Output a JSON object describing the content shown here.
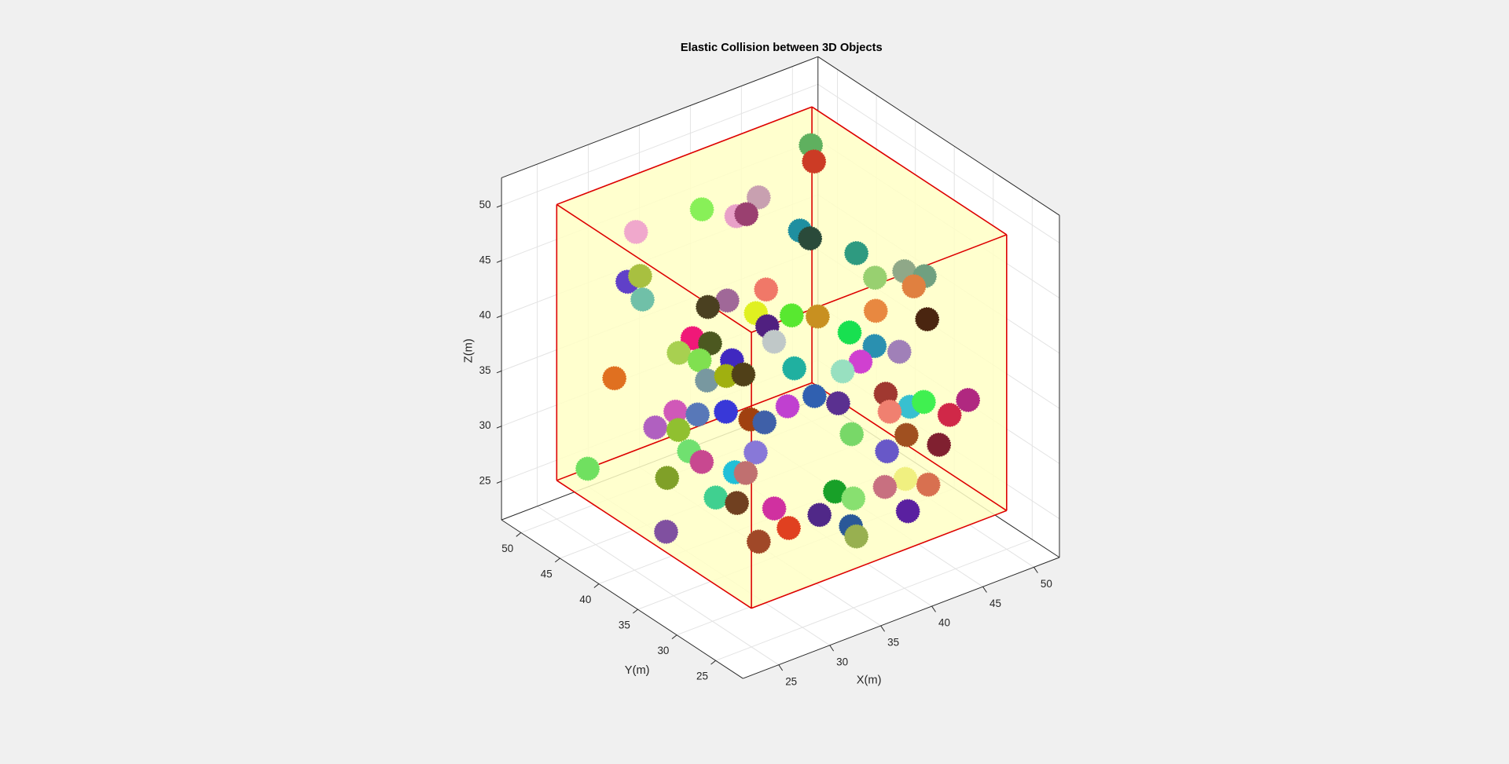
{
  "chart_data": {
    "type": "scatter3d",
    "title": "Elastic Collision between 3D Objects",
    "xlabel": "X(m)",
    "ylabel": "Y(m)",
    "zlabel": "Z(m)",
    "xlim": [
      21.5,
      52.5
    ],
    "ylim": [
      21.5,
      52.5
    ],
    "zlim": [
      21.5,
      52.5
    ],
    "xticks": [
      25,
      30,
      35,
      40,
      45,
      50
    ],
    "yticks": [
      25,
      30,
      35,
      40,
      45,
      50
    ],
    "zticks": [
      25,
      30,
      35,
      40,
      45,
      50
    ],
    "grid": true,
    "container": {
      "lim": [
        25,
        50
      ],
      "edge_color": "#dd0000",
      "face_color": "#ffffc6"
    },
    "x": [
      46.0,
      45.7,
      38.0,
      41.5,
      39.7,
      40.3,
      32.0,
      42.8,
      43.1,
      45.2,
      45.5,
      47.3,
      48.3,
      47.4,
      30.5,
      29.8,
      30.2,
      39.1,
      35.3,
      36.6,
      37.8,
      39.7,
      41.1,
      44.5,
      47.1,
      38.0,
      33.5,
      34.3,
      32.3,
      37.9,
      42.4,
      43.4,
      44.6,
      33.2,
      35.0,
      38.2,
      40.8,
      42.1,
      27.9,
      33.0,
      34.2,
      35.2,
      38.5,
      39.6,
      42.5,
      44.4,
      46.9,
      45.4,
      30.3,
      31.4,
      33.1,
      36.7,
      28.7,
      29.9,
      34.2,
      34.9,
      42.2,
      43.5,
      39.4,
      42.4,
      43.9,
      40.8,
      33.5,
      29.8,
      30.2,
      25.2,
      27.8,
      32.3,
      31.7,
      41.0,
      39.6,
      42.4,
      36.7,
      37.5,
      29.9,
      30.9,
      32.8,
      35.1,
      40.4,
      26.1,
      33.0,
      36.5,
      36.5,
      30.9
    ],
    "y": [
      44.9,
      44.1,
      48.4,
      45.7,
      46.2,
      45.7,
      49.0,
      42.1,
      41.2,
      38.0,
      36.0,
      34.6,
      33.3,
      33.5,
      46.5,
      47.2,
      45.8,
      41.6,
      44.1,
      43.3,
      41.2,
      39.1,
      37.6,
      34.6,
      31.4,
      40.0,
      43.7,
      42.5,
      43.9,
      39.0,
      35.2,
      33.3,
      31.7,
      42.4,
      40.6,
      36.8,
      34.0,
      33.4,
      46.4,
      41.2,
      40.3,
      39.4,
      34.6,
      33.0,
      30.7,
      28.3,
      25.9,
      26.3,
      41.7,
      40.3,
      38.9,
      35.7,
      42.2,
      40.8,
      37.2,
      36.3,
      29.8,
      28.9,
      31.0,
      27.9,
      25.7,
      28.3,
      35.6,
      39.3,
      38.2,
      46.3,
      39.5,
      35.3,
      35.9,
      26.2,
      27.0,
      25.1,
      29.6,
      28.3,
      36.0,
      34.6,
      32.3,
      29.5,
      25.1,
      37.4,
      30.7,
      27.3,
      26.6,
      31.8
    ],
    "z": [
      50.3,
      49.3,
      45.7,
      46.8,
      45.5,
      45.7,
      45.5,
      45.0,
      44.6,
      44.0,
      42.6,
      43.2,
      43.0,
      42.3,
      43.2,
      42.6,
      41.5,
      41.2,
      39.8,
      40.3,
      39.7,
      39.8,
      39.9,
      40.6,
      40.4,
      39.0,
      37.8,
      37.6,
      36.8,
      38.1,
      39.1,
      38.4,
      38.2,
      36.5,
      36.7,
      36.6,
      36.7,
      37.4,
      34.9,
      35.3,
      35.7,
      35.9,
      35.0,
      34.7,
      35.6,
      35.3,
      35.7,
      34.7,
      33.2,
      33.2,
      33.5,
      34.2,
      32.1,
      32.1,
      33.2,
      33.1,
      34.5,
      34.9,
      32.9,
      33.2,
      32.8,
      32.1,
      31.2,
      30.9,
      30.3,
      27.7,
      29.1,
      29.9,
      29.9,
      30.5,
      29.9,
      30.0,
      29.3,
      29.0,
      28.2,
      28.0,
      27.9,
      27.8,
      28.3,
      25.8,
      26.8,
      27.3,
      26.7,
      25.8
    ],
    "colors": [
      "#5fb05f",
      "#cc3b25",
      "#88f058",
      "#c8a0b0",
      "#e8a0c8",
      "#9a4070",
      "#f0a8cc",
      "#1f8fa0",
      "#2a4a3a",
      "#2e9a80",
      "#98d070",
      "#8fa888",
      "#70a080",
      "#e08040",
      "#a8c040",
      "#6040c8",
      "#70c0a8",
      "#f07868",
      "#4a4020",
      "#a06898",
      "#e0f020",
      "#58e830",
      "#c89020",
      "#e88840",
      "#4a2510",
      "#502080",
      "#f01878",
      "#4c5820",
      "#a8d050",
      "#c0c8c8",
      "#18e050",
      "#2a90b0",
      "#a080b8",
      "#80e050",
      "#4028c0",
      "#20b0a0",
      "#98e0c0",
      "#d040d0",
      "#e07020",
      "#7898a0",
      "#a0b010",
      "#504018",
      "#3060b0",
      "#5a3090",
      "#a03830",
      "#40f050",
      "#b02880",
      "#d02848",
      "#d058b8",
      "#5878b8",
      "#3838d8",
      "#c040d0",
      "#b060c0",
      "#90c030",
      "#a04010",
      "#3f60a8",
      "#f08070",
      "#38c0d0",
      "#78d868",
      "#a05020",
      "#802030",
      "#6858c8",
      "#8878d8",
      "#70e070",
      "#c84890",
      "#70e060",
      "#80a028",
      "#c07070",
      "#20c0d8",
      "#f0f080",
      "#c87080",
      "#d87050",
      "#18a028",
      "#88e070",
      "#40d090",
      "#704020",
      "#d030a0",
      "#502888",
      "#5a20a0",
      "#8050a0",
      "#e04020",
      "#2a5898",
      "#98b050",
      "#a04828"
    ]
  }
}
